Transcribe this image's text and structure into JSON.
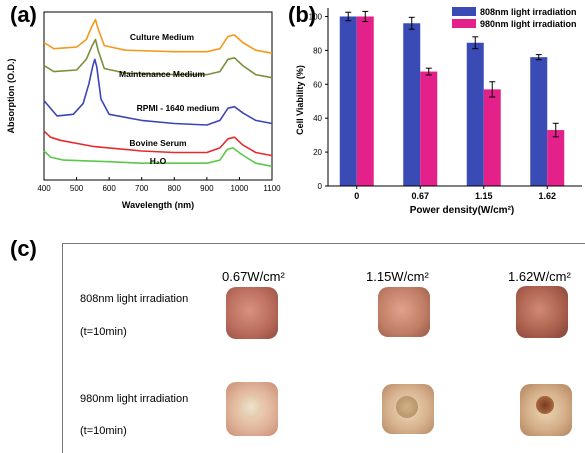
{
  "panel_labels": [
    "(a)",
    "(b)",
    "(c)"
  ],
  "chart_data": [
    {
      "type": "line",
      "panel": "(a)",
      "xlabel": "Wavelength (nm)",
      "ylabel": "Absorption (O.D.)",
      "xlim": [
        400,
        1100
      ],
      "xticks": [
        400,
        500,
        600,
        700,
        800,
        900,
        1000,
        1100
      ],
      "y_ticks_shown": false,
      "series": [
        {
          "name": "Culture Medium",
          "color": "#f39a1e",
          "points": [
            [
              400,
              0.95
            ],
            [
              430,
              0.91
            ],
            [
              500,
              0.92
            ],
            [
              530,
              0.97
            ],
            [
              548,
              1.06
            ],
            [
              558,
              1.1
            ],
            [
              566,
              1.04
            ],
            [
              585,
              0.93
            ],
            [
              650,
              0.9
            ],
            [
              800,
              0.89
            ],
            [
              900,
              0.89
            ],
            [
              940,
              0.91
            ],
            [
              965,
              0.99
            ],
            [
              985,
              1.0
            ],
            [
              1010,
              0.95
            ],
            [
              1050,
              0.9
            ],
            [
              1100,
              0.88
            ]
          ]
        },
        {
          "name": "Maintenance Medium",
          "color": "#7a8f3a",
          "points": [
            [
              400,
              0.8
            ],
            [
              430,
              0.76
            ],
            [
              500,
              0.77
            ],
            [
              530,
              0.84
            ],
            [
              548,
              0.93
            ],
            [
              558,
              0.97
            ],
            [
              566,
              0.9
            ],
            [
              585,
              0.78
            ],
            [
              650,
              0.75
            ],
            [
              800,
              0.74
            ],
            [
              900,
              0.74
            ],
            [
              940,
              0.76
            ],
            [
              965,
              0.84
            ],
            [
              985,
              0.85
            ],
            [
              1010,
              0.8
            ],
            [
              1050,
              0.74
            ],
            [
              1100,
              0.72
            ]
          ]
        },
        {
          "name": "RPMI - 1640 medium",
          "color": "#3c45b8",
          "points": [
            [
              400,
              0.57
            ],
            [
              440,
              0.47
            ],
            [
              490,
              0.48
            ],
            [
              520,
              0.55
            ],
            [
              538,
              0.68
            ],
            [
              550,
              0.8
            ],
            [
              556,
              0.84
            ],
            [
              562,
              0.79
            ],
            [
              575,
              0.58
            ],
            [
              600,
              0.48
            ],
            [
              700,
              0.44
            ],
            [
              800,
              0.42
            ],
            [
              900,
              0.41
            ],
            [
              940,
              0.44
            ],
            [
              965,
              0.52
            ],
            [
              985,
              0.53
            ],
            [
              1010,
              0.49
            ],
            [
              1050,
              0.44
            ],
            [
              1100,
              0.42
            ]
          ]
        },
        {
          "name": "Bovine Serum",
          "color": "#e52b2b",
          "points": [
            [
              400,
              0.37
            ],
            [
              420,
              0.33
            ],
            [
              450,
              0.31
            ],
            [
              550,
              0.27
            ],
            [
              600,
              0.26
            ],
            [
              700,
              0.24
            ],
            [
              800,
              0.23
            ],
            [
              900,
              0.23
            ],
            [
              940,
              0.26
            ],
            [
              965,
              0.32
            ],
            [
              985,
              0.33
            ],
            [
              1010,
              0.28
            ],
            [
              1050,
              0.23
            ],
            [
              1100,
              0.21
            ]
          ]
        },
        {
          "name": "H₂O",
          "color": "#5cc84a",
          "points": [
            [
              400,
              0.24
            ],
            [
              420,
              0.2
            ],
            [
              460,
              0.18
            ],
            [
              600,
              0.17
            ],
            [
              700,
              0.16
            ],
            [
              800,
              0.16
            ],
            [
              900,
              0.16
            ],
            [
              940,
              0.18
            ],
            [
              962,
              0.25
            ],
            [
              980,
              0.26
            ],
            [
              1005,
              0.22
            ],
            [
              1050,
              0.16
            ],
            [
              1100,
              0.14
            ]
          ]
        }
      ]
    },
    {
      "type": "bar",
      "panel": "(b)",
      "xlabel": "Power density(W/cm²)",
      "ylabel": "Cell Viability (%)",
      "ylim": [
        0,
        105
      ],
      "yticks": [
        0,
        20,
        40,
        60,
        80,
        100
      ],
      "categories": [
        "0",
        "0.67",
        "1.15",
        "1.62"
      ],
      "legend_position": "top-right",
      "series": [
        {
          "name": "808nm light irradiation",
          "color": "#3a4bb5",
          "values": [
            100,
            96,
            84.5,
            76
          ],
          "errors": [
            2.5,
            3.5,
            3.5,
            1.5
          ]
        },
        {
          "name": "980nm light irradiation",
          "color": "#e4208b",
          "values": [
            100,
            67.5,
            57,
            33
          ],
          "errors": [
            3,
            2,
            4.5,
            4
          ]
        }
      ]
    }
  ],
  "panel_c": {
    "columns": [
      "0.67W/cm²",
      "1.15W/cm²",
      "1.62W/cm²"
    ],
    "rows": [
      {
        "label": "808nm light irradiation",
        "time": "(t=10min)"
      },
      {
        "label": "980nm light irradiation",
        "time": "(t=10min)"
      }
    ]
  }
}
